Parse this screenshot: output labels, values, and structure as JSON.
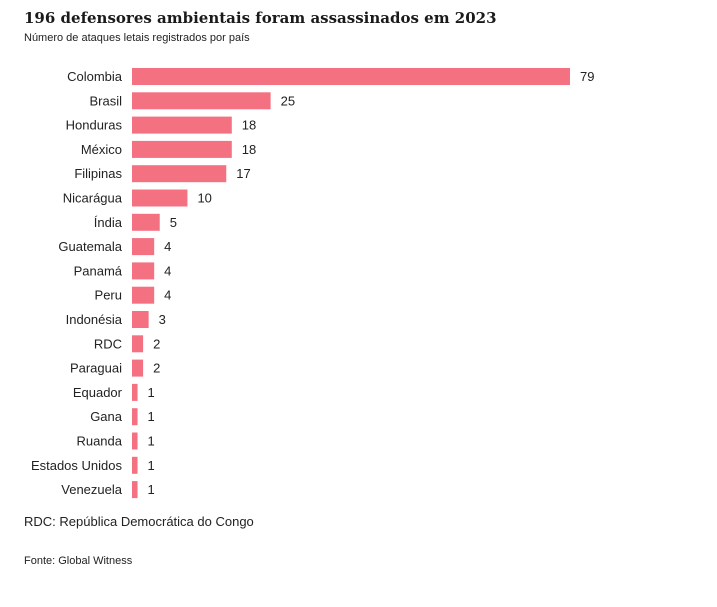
{
  "chart_data": {
    "type": "bar",
    "orientation": "horizontal",
    "title": "196 defensores ambientais foram assassinados em 2023",
    "subtitle": "Número de ataques letais registrados por país",
    "xlabel": "",
    "ylabel": "",
    "xlim": [
      0,
      79
    ],
    "grid": false,
    "categories": [
      "Colombia",
      "Brasil",
      "Honduras",
      "México",
      "Filipinas",
      "Nicarágua",
      "Índia",
      "Guatemala",
      "Panamá",
      "Peru",
      "Indonésia",
      "RDC",
      "Paraguai",
      "Equador",
      "Gana",
      "Ruanda",
      "Estados Unidos",
      "Venezuela"
    ],
    "values": [
      79,
      25,
      18,
      18,
      17,
      10,
      5,
      4,
      4,
      4,
      3,
      2,
      2,
      1,
      1,
      1,
      1,
      1
    ],
    "bar_color": "#f47182",
    "note": "RDC: República Democrática do Congo",
    "source": "Fonte: Global Witness"
  }
}
